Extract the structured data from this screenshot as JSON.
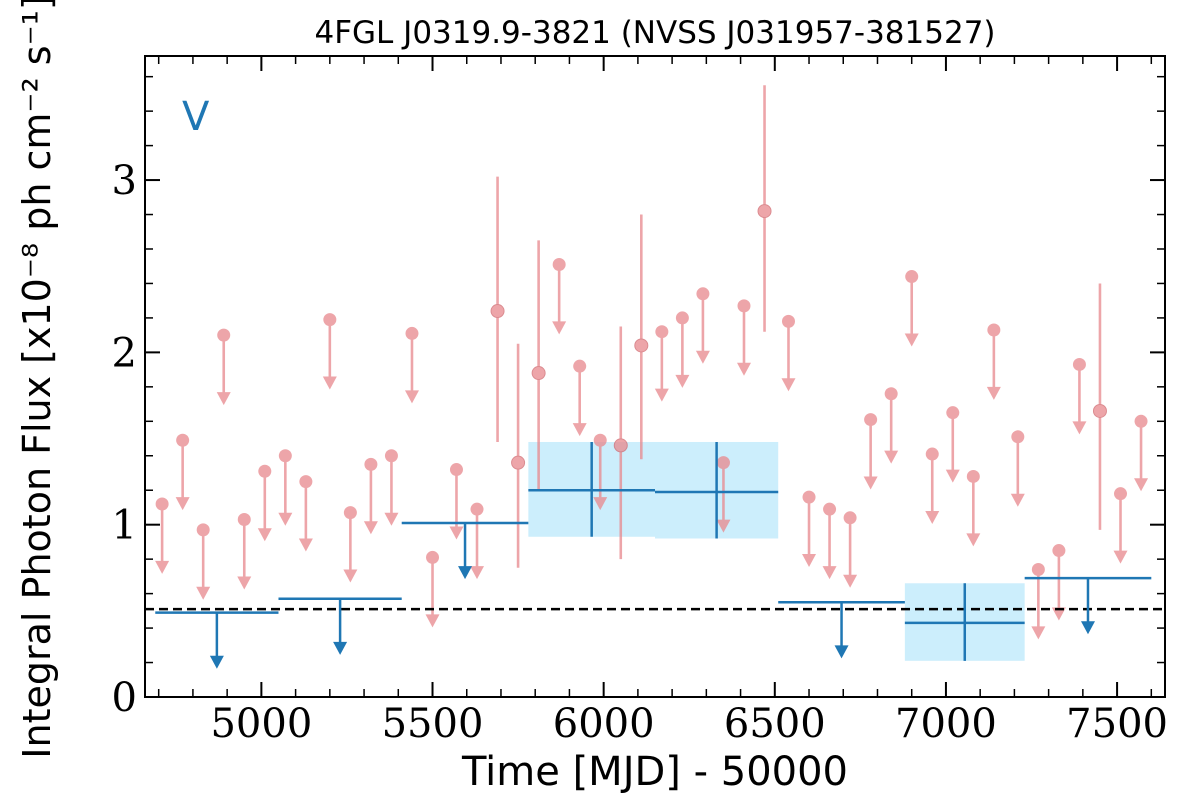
{
  "chart_data": {
    "type": "scatter",
    "title": "4FGL J0319.9-3821 (NVSS J031957-381527)",
    "xlabel": "Time [MJD] - 50000",
    "ylabel": "Integral Photon Flux [x10⁻⁸ ph cm⁻² s⁻¹]",
    "band_label": "V",
    "xlim": [
      4660,
      7640
    ],
    "ylim": [
      0,
      3.72
    ],
    "x_ticks": [
      5000,
      5500,
      6000,
      6500,
      7000,
      7500
    ],
    "x_tick_labels": [
      "5000",
      "5500",
      "6000",
      "6500",
      "7000",
      "7500"
    ],
    "y_ticks": [
      0,
      1,
      2,
      3
    ],
    "y_tick_labels": [
      "0",
      "1",
      "2",
      "3"
    ],
    "grid": false,
    "reference_level": 0.51,
    "colors": {
      "fine_bins": "#e8888d",
      "coarse_bins": "#1f77b4",
      "error_band": "#cceefc",
      "reference_line": "#000000"
    },
    "fine_bins": {
      "bin_width_days": 60,
      "detections": [
        {
          "x": 5690,
          "y": 2.24,
          "ylo": 1.48,
          "yhi": 3.02
        },
        {
          "x": 5750,
          "y": 1.36,
          "ylo": 0.75,
          "yhi": 2.05
        },
        {
          "x": 5810,
          "y": 1.88,
          "ylo": 1.2,
          "yhi": 2.65
        },
        {
          "x": 6050,
          "y": 1.46,
          "ylo": 0.8,
          "yhi": 2.15
        },
        {
          "x": 6110,
          "y": 2.04,
          "ylo": 1.38,
          "yhi": 2.8
        },
        {
          "x": 6470,
          "y": 2.82,
          "ylo": 2.12,
          "yhi": 3.55
        },
        {
          "x": 7450,
          "y": 1.66,
          "ylo": 0.97,
          "yhi": 2.4
        }
      ],
      "upper_limits": [
        {
          "x": 4710,
          "y": 1.12
        },
        {
          "x": 4770,
          "y": 1.49
        },
        {
          "x": 4830,
          "y": 0.97
        },
        {
          "x": 4890,
          "y": 2.1
        },
        {
          "x": 4950,
          "y": 1.03
        },
        {
          "x": 5010,
          "y": 1.31
        },
        {
          "x": 5070,
          "y": 1.4
        },
        {
          "x": 5130,
          "y": 1.25
        },
        {
          "x": 5200,
          "y": 2.19
        },
        {
          "x": 5260,
          "y": 1.07
        },
        {
          "x": 5320,
          "y": 1.35
        },
        {
          "x": 5380,
          "y": 1.4
        },
        {
          "x": 5440,
          "y": 2.11
        },
        {
          "x": 5500,
          "y": 0.81
        },
        {
          "x": 5570,
          "y": 1.32
        },
        {
          "x": 5630,
          "y": 1.09
        },
        {
          "x": 5870,
          "y": 2.51
        },
        {
          "x": 5930,
          "y": 1.92
        },
        {
          "x": 5990,
          "y": 1.49
        },
        {
          "x": 6170,
          "y": 2.12
        },
        {
          "x": 6230,
          "y": 2.2
        },
        {
          "x": 6290,
          "y": 2.34
        },
        {
          "x": 6350,
          "y": 1.36
        },
        {
          "x": 6410,
          "y": 2.27
        },
        {
          "x": 6540,
          "y": 2.18
        },
        {
          "x": 6600,
          "y": 1.16
        },
        {
          "x": 6660,
          "y": 1.09
        },
        {
          "x": 6720,
          "y": 1.04
        },
        {
          "x": 6780,
          "y": 1.61
        },
        {
          "x": 6840,
          "y": 1.76
        },
        {
          "x": 6900,
          "y": 2.44
        },
        {
          "x": 6960,
          "y": 1.41
        },
        {
          "x": 7020,
          "y": 1.65
        },
        {
          "x": 7080,
          "y": 1.28
        },
        {
          "x": 7140,
          "y": 2.13
        },
        {
          "x": 7210,
          "y": 1.51
        },
        {
          "x": 7270,
          "y": 0.74
        },
        {
          "x": 7330,
          "y": 0.85
        },
        {
          "x": 7390,
          "y": 1.93
        },
        {
          "x": 7510,
          "y": 1.18
        },
        {
          "x": 7570,
          "y": 1.6
        }
      ]
    },
    "coarse_bins": {
      "upper_limits": [
        {
          "x0": 4690,
          "x1": 5050,
          "y": 0.49
        },
        {
          "x0": 5050,
          "x1": 5410,
          "y": 0.57
        },
        {
          "x0": 5410,
          "x1": 5780,
          "y": 1.01
        },
        {
          "x0": 6510,
          "x1": 6880,
          "y": 0.55
        },
        {
          "x0": 7230,
          "x1": 7600,
          "y": 0.69
        }
      ],
      "detections": [
        {
          "x0": 5780,
          "x1": 6150,
          "y": 1.2,
          "ylo": 0.93,
          "yhi": 1.48
        },
        {
          "x0": 6150,
          "x1": 6510,
          "y": 1.19,
          "ylo": 0.92,
          "yhi": 1.48
        },
        {
          "x0": 6880,
          "x1": 7230,
          "y": 0.43,
          "ylo": 0.21,
          "yhi": 0.66
        }
      ]
    }
  }
}
